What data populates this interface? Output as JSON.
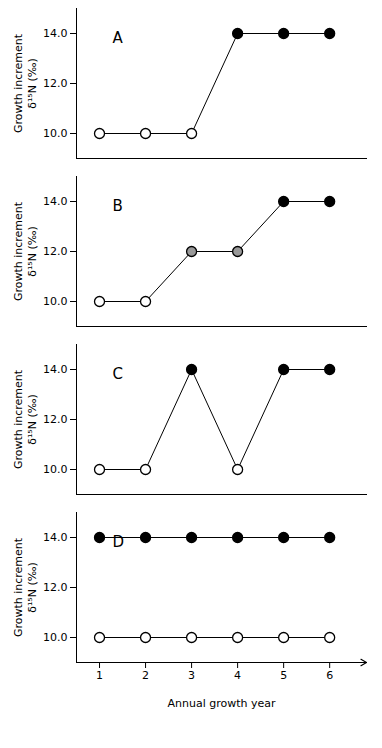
{
  "chart_data": [
    {
      "type": "line",
      "annotation": "A",
      "ylabel": "Growth increment\nδ¹⁵N (‰)",
      "x": [
        1,
        2,
        3,
        4,
        5,
        6
      ],
      "series": [
        {
          "color": "black",
          "marker": "circle",
          "values": [
            10,
            10,
            10,
            14,
            14,
            14
          ],
          "colors": [
            "white",
            "white",
            "white",
            "black",
            "black",
            "black"
          ]
        }
      ],
      "xlim": [
        0.5,
        6.8
      ],
      "xticks": [
        1,
        2,
        3,
        4,
        5,
        6
      ],
      "ylim": [
        9.0,
        15.0
      ],
      "yticks": [
        10,
        12,
        14
      ],
      "tick_labels": "y"
    },
    {
      "type": "line",
      "annotation": "B",
      "ylabel": "Growth increment\nδ¹⁵N (‰)",
      "x": [
        1,
        2,
        3,
        4,
        5,
        6
      ],
      "series": [
        {
          "color": "black",
          "marker": "circle",
          "values": [
            10,
            10,
            12,
            12,
            14,
            14
          ],
          "colors": [
            "white",
            "white",
            "#999999",
            "#999999",
            "black",
            "black"
          ]
        }
      ],
      "xlim": [
        0.5,
        6.8
      ],
      "xticks": [
        1,
        2,
        3,
        4,
        5,
        6
      ],
      "ylim": [
        9.0,
        15.0
      ],
      "yticks": [
        10,
        12,
        14
      ],
      "tick_labels": "y"
    },
    {
      "type": "line",
      "annotation": "C",
      "ylabel": "Growth increment\nδ¹⁵N (‰)",
      "x": [
        1,
        2,
        3,
        4,
        5,
        6
      ],
      "series": [
        {
          "color": "black",
          "marker": "circle",
          "values": [
            10,
            10,
            14,
            10,
            14,
            14
          ],
          "colors": [
            "white",
            "white",
            "black",
            "white",
            "black",
            "black"
          ]
        }
      ],
      "xlim": [
        0.5,
        6.8
      ],
      "xticks": [
        1,
        2,
        3,
        4,
        5,
        6
      ],
      "ylim": [
        9.0,
        15.0
      ],
      "yticks": [
        10,
        12,
        14
      ],
      "tick_labels": "y"
    },
    {
      "type": "line",
      "annotation": "D",
      "ylabel": "Growth increment\nδ¹⁵N (‰)",
      "xlabel": "Annual growth year",
      "x": [
        1,
        2,
        3,
        4,
        5,
        6
      ],
      "series": [
        {
          "color": "black",
          "marker": "circle",
          "values": [
            14,
            14,
            14,
            14,
            14,
            14
          ],
          "colors": [
            "black",
            "black",
            "black",
            "black",
            "black",
            "black"
          ]
        },
        {
          "color": "black",
          "marker": "circle",
          "values": [
            10,
            10,
            10,
            10,
            10,
            10
          ],
          "colors": [
            "white",
            "white",
            "white",
            "white",
            "white",
            "white"
          ]
        }
      ],
      "xlim": [
        0.5,
        6.8
      ],
      "xticks": [
        1,
        2,
        3,
        4,
        5,
        6
      ],
      "ylim": [
        9.0,
        15.0
      ],
      "yticks": [
        10,
        12,
        14
      ]
    }
  ]
}
